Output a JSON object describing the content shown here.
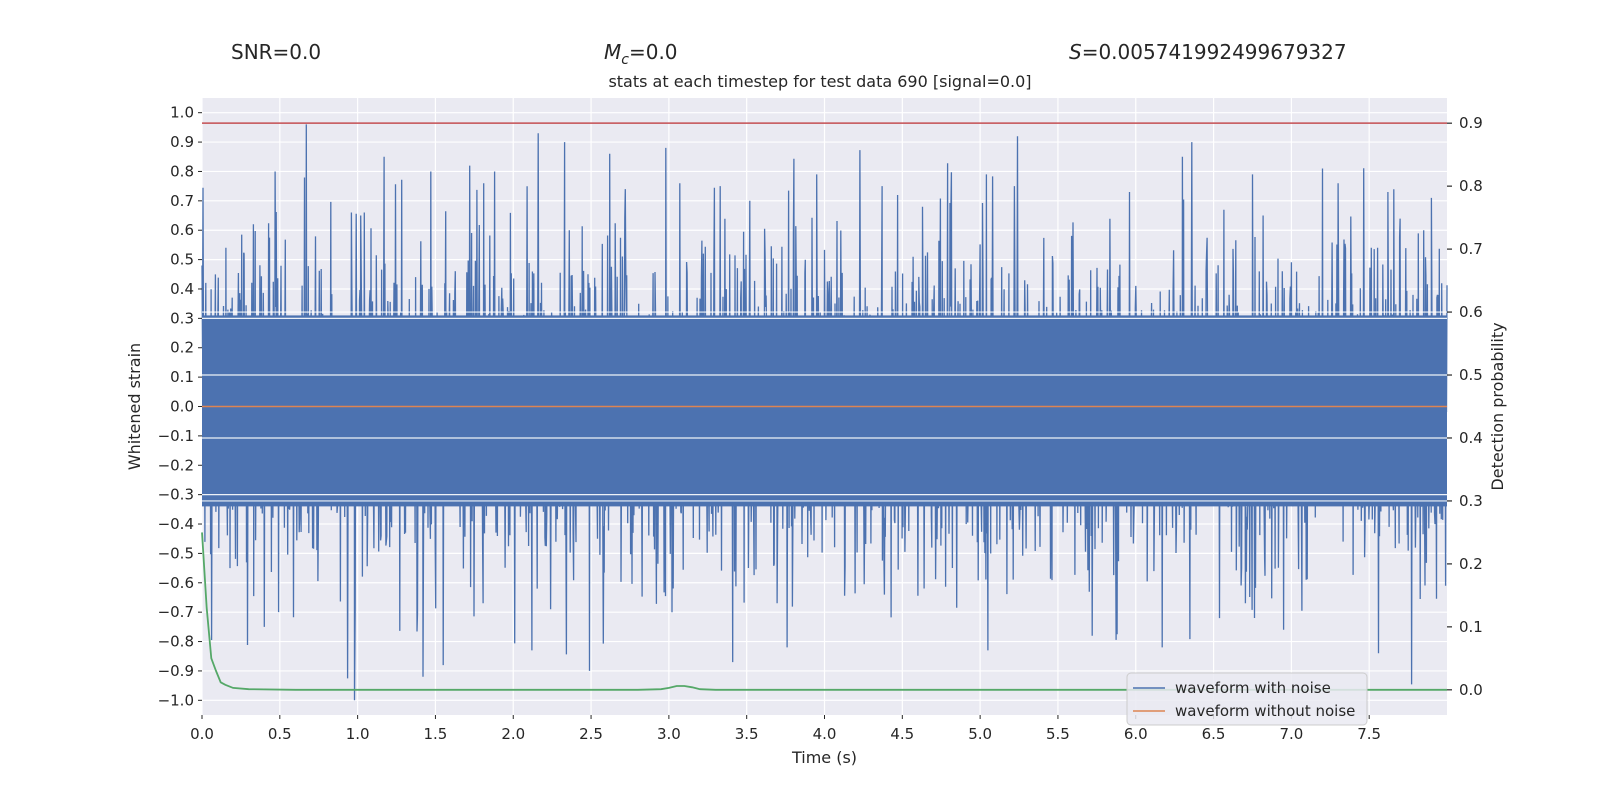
{
  "header": {
    "snr_text": "SNR=0.0",
    "mc_symbol": "M",
    "mc_sub": "c",
    "mc_value": "=0.0",
    "s_symbol": "S",
    "s_value": "=0.005741992499679327"
  },
  "chart_data": {
    "type": "line",
    "title": "stats at each timestep for test data 690 [signal=0.0]",
    "xlabel": "Time (s)",
    "ylabel_left": "Whitened strain",
    "ylabel_right": "Detection probability",
    "xlim": [
      0.0,
      8.0
    ],
    "ylim_left": [
      -1.05,
      1.05
    ],
    "ylim_right": [
      -0.04,
      0.94
    ],
    "x_ticks": [
      "0.0",
      "0.5",
      "1.0",
      "1.5",
      "2.0",
      "2.5",
      "3.0",
      "3.5",
      "4.0",
      "4.5",
      "5.0",
      "5.5",
      "6.0",
      "6.5",
      "7.0",
      "7.5"
    ],
    "y_ticks_left": [
      "1.0",
      "0.9",
      "0.8",
      "0.7",
      "0.6",
      "0.5",
      "0.4",
      "0.3",
      "0.2",
      "0.1",
      "0.0",
      "-0.1",
      "-0.2",
      "-0.3",
      "-0.4",
      "-0.5",
      "-0.6",
      "-0.7",
      "-0.8",
      "-0.9",
      "-1.0"
    ],
    "y_ticks_right": [
      "0.9",
      "0.8",
      "0.7",
      "0.6",
      "0.5",
      "0.4",
      "0.3",
      "0.2",
      "0.1",
      "0.0"
    ],
    "threshold": 0.9,
    "colors": {
      "noise": "#4c72b0",
      "clean": "#dd8452",
      "prob": "#55a868",
      "threshold": "#c44e52",
      "background": "#eaeaf2",
      "grid": "#ffffff"
    },
    "series": [
      {
        "name": "waveform with noise",
        "axis": "left",
        "note": "dense whitened noise envelope (peaks sampled)",
        "peaks_x": [
          0.0,
          0.18,
          0.33,
          0.4,
          0.47,
          0.67,
          0.7,
          0.98,
          1.02,
          1.17,
          1.2,
          1.42,
          1.47,
          1.55,
          1.72,
          1.81,
          1.88,
          2.12,
          2.16,
          2.33,
          2.36,
          2.49,
          2.62,
          2.72,
          2.98,
          3.02,
          3.07,
          3.33,
          3.41,
          3.52,
          3.76,
          3.95,
          4.37,
          4.47,
          4.63,
          5.04,
          5.05,
          5.22,
          5.24,
          5.72,
          5.96,
          6.17,
          6.3,
          6.36,
          6.75,
          6.95,
          7.2,
          7.3,
          7.56,
          7.62,
          7.85,
          7.9
        ],
        "peaks_y": [
          0.48,
          -0.55,
          0.62,
          -0.75,
          0.8,
          0.96,
          0.3,
          -1.0,
          0.65,
          0.85,
          0.05,
          -0.92,
          0.8,
          -0.88,
          0.82,
          0.76,
          0.8,
          -0.83,
          0.93,
          0.9,
          0.6,
          -0.9,
          0.86,
          0.74,
          0.88,
          -0.7,
          0.76,
          0.75,
          -0.87,
          0.7,
          -0.82,
          0.79,
          0.75,
          0.72,
          0.68,
          0.79,
          -0.83,
          0.75,
          0.92,
          -0.78,
          0.73,
          -0.82,
          0.85,
          0.9,
          0.79,
          -0.76,
          0.81,
          0.76,
          -0.84,
          0.73,
          0.6,
          0.71
        ]
      },
      {
        "name": "waveform without noise",
        "axis": "left",
        "x": [
          0.0,
          8.0
        ],
        "y": [
          0.0,
          0.0
        ]
      },
      {
        "name": "detection probability",
        "axis": "right",
        "x": [
          0.0,
          0.03,
          0.06,
          0.09,
          0.12,
          0.15,
          0.2,
          0.3,
          0.6,
          1.0,
          2.0,
          2.8,
          2.95,
          3.0,
          3.05,
          3.1,
          3.15,
          3.2,
          3.3,
          4.0,
          5.0,
          6.0,
          7.0,
          8.0
        ],
        "y": [
          0.25,
          0.13,
          0.05,
          0.03,
          0.012,
          0.008,
          0.003,
          0.001,
          0.0,
          0.0,
          0.0,
          0.0,
          0.001,
          0.003,
          0.006,
          0.006,
          0.004,
          0.001,
          0.0,
          0.0,
          0.0,
          0.0,
          0.0,
          0.0
        ]
      }
    ],
    "legend": [
      "waveform with noise",
      "waveform without noise"
    ],
    "legend_position": "lower-right"
  }
}
